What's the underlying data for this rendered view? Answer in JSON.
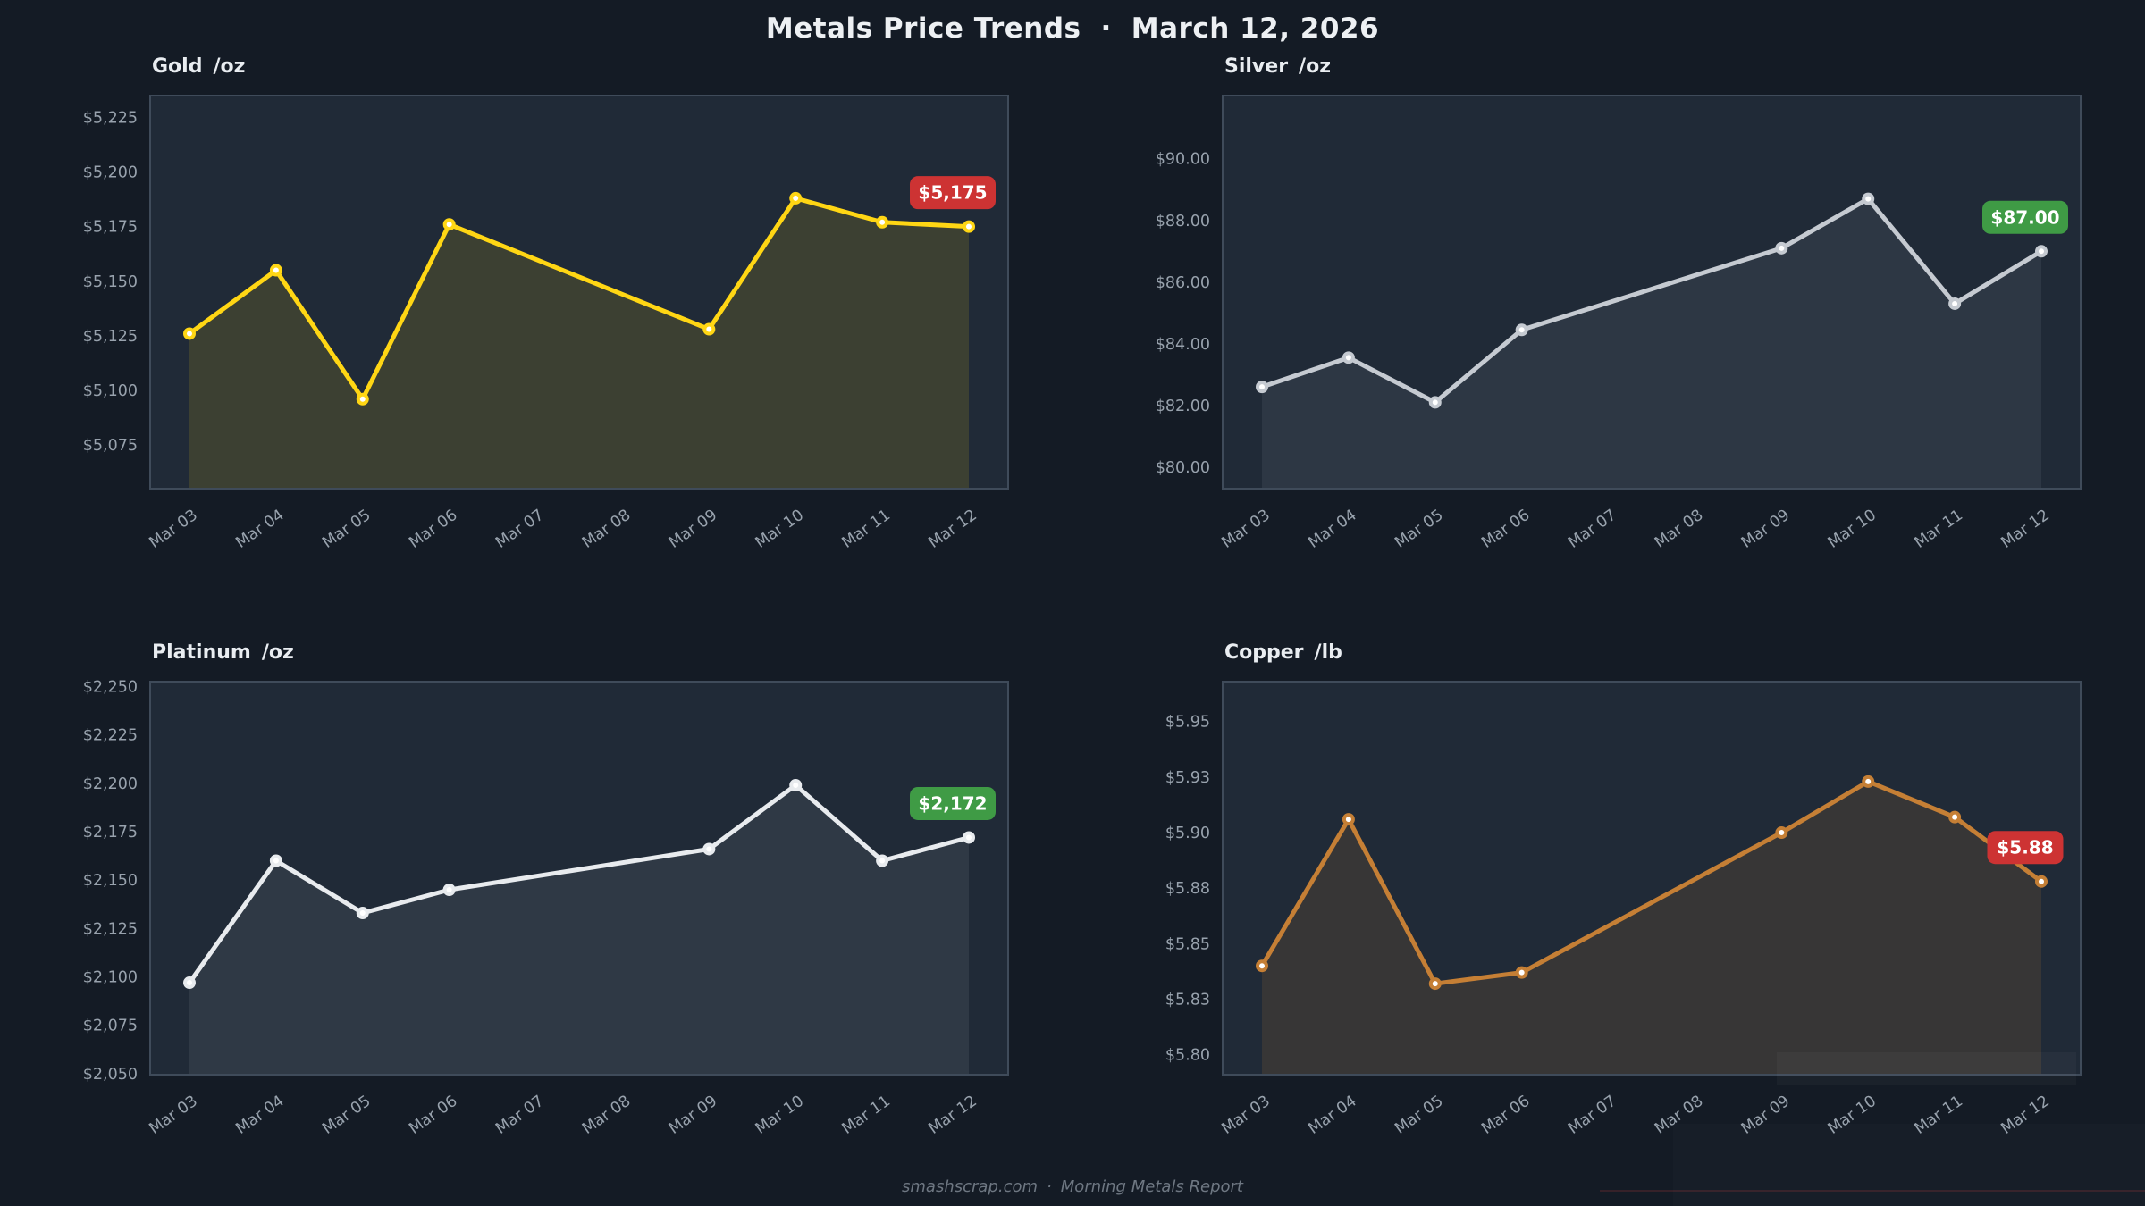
{
  "header": {
    "title": "Metals Price Trends",
    "separator": "·",
    "date": "March 12, 2026"
  },
  "footer": {
    "site": "smashscrap.com",
    "separator": "·",
    "report": "Morning Metals Report"
  },
  "theme": {
    "background": "#141b25",
    "plot_background": "#202a37",
    "plot_border": "#3f4b5a",
    "tick_text": "#98a2ad",
    "title_text": "#e9edf1",
    "footer_text": "#6e7782",
    "badge_red": "#cd3333",
    "badge_green": "#3f9b45"
  },
  "chart_data": [
    {
      "type": "line",
      "metal": "Gold",
      "unit": "/oz",
      "categories": [
        "Mar 03",
        "Mar 04",
        "Mar 05",
        "Mar 06",
        "Mar 07",
        "Mar 08",
        "Mar 09",
        "Mar 10",
        "Mar 11",
        "Mar 12"
      ],
      "values": [
        5126,
        5155,
        5096,
        5176,
        null,
        null,
        5128,
        5188,
        5177,
        5175
      ],
      "ytick_labels": [
        "$5,225",
        "$5,200",
        "$5,175",
        "$5,150",
        "$5,125",
        "$5,100",
        "$5,075"
      ],
      "ytick_values": [
        5225,
        5200,
        5175,
        5150,
        5125,
        5100,
        5075
      ],
      "ylim": [
        5055,
        5235
      ],
      "grid": false,
      "line_color": "#ffd614",
      "fill_color": "rgba(255,214,20,0.13)",
      "badge": {
        "label": "$5,175",
        "color": "#cd3333"
      }
    },
    {
      "type": "line",
      "metal": "Silver",
      "unit": "/oz",
      "categories": [
        "Mar 03",
        "Mar 04",
        "Mar 05",
        "Mar 06",
        "Mar 07",
        "Mar 08",
        "Mar 09",
        "Mar 10",
        "Mar 11",
        "Mar 12"
      ],
      "values": [
        82.6,
        83.55,
        82.1,
        84.45,
        null,
        null,
        87.1,
        88.7,
        85.3,
        87.0
      ],
      "ytick_labels": [
        "$90.00",
        "$88.00",
        "$86.00",
        "$84.00",
        "$82.00",
        "$80.00"
      ],
      "ytick_values": [
        90,
        88,
        86,
        84,
        82,
        80
      ],
      "ylim": [
        79.3,
        92.05
      ],
      "grid": false,
      "line_color": "#c5cad1",
      "fill_color": "rgba(220,228,236,0.07)",
      "badge": {
        "label": "$87.00",
        "color": "#3f9b45"
      }
    },
    {
      "type": "line",
      "metal": "Platinum",
      "unit": "/oz",
      "categories": [
        "Mar 03",
        "Mar 04",
        "Mar 05",
        "Mar 06",
        "Mar 07",
        "Mar 08",
        "Mar 09",
        "Mar 10",
        "Mar 11",
        "Mar 12"
      ],
      "values": [
        2097,
        2160,
        2133,
        2145,
        null,
        null,
        2166,
        2199,
        2160,
        2172
      ],
      "ytick_labels": [
        "$2,250",
        "$2,225",
        "$2,200",
        "$2,175",
        "$2,150",
        "$2,125",
        "$2,100",
        "$2,075",
        "$2,050"
      ],
      "ytick_values": [
        2250,
        2225,
        2200,
        2175,
        2150,
        2125,
        2100,
        2075,
        2050
      ],
      "ylim": [
        2049.5,
        2252.5
      ],
      "grid": false,
      "line_color": "#e8ebee",
      "fill_color": "rgba(235,239,243,0.08)",
      "badge": {
        "label": "$2,172",
        "color": "#3f9b45"
      }
    },
    {
      "type": "line",
      "metal": "Copper",
      "unit": "/lb",
      "categories": [
        "Mar 03",
        "Mar 04",
        "Mar 05",
        "Mar 06",
        "Mar 07",
        "Mar 08",
        "Mar 09",
        "Mar 10",
        "Mar 11",
        "Mar 12"
      ],
      "values": [
        5.84,
        5.906,
        5.832,
        5.837,
        null,
        null,
        5.9,
        5.923,
        5.907,
        5.878
      ],
      "ytick_labels": [
        "$5.95",
        "$5.93",
        "$5.90",
        "$5.88",
        "$5.85",
        "$5.83",
        "$5.80"
      ],
      "ytick_values": [
        5.95,
        5.925,
        5.9,
        5.875,
        5.85,
        5.825,
        5.8
      ],
      "ylim": [
        5.791,
        5.968
      ],
      "grid": false,
      "line_color": "#c57f35",
      "fill_color": "rgba(197,127,53,0.14)",
      "badge": {
        "label": "$5.88",
        "color": "#cd3333"
      }
    }
  ]
}
